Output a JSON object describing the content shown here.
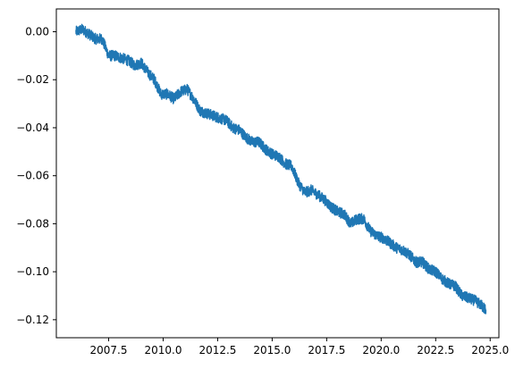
{
  "chart_data": {
    "type": "line",
    "title": "",
    "xlabel": "",
    "ylabel": "",
    "xlim": [
      2005.1,
      2025.4
    ],
    "ylim": [
      -0.1275,
      0.0095
    ],
    "grid": false,
    "legend": "none",
    "x_ticks": [
      2007.5,
      2010.0,
      2012.5,
      2015.0,
      2017.5,
      2020.0,
      2022.5,
      2025.0
    ],
    "x_tick_labels": [
      "2007.5",
      "2010.0",
      "2012.5",
      "2015.0",
      "2017.5",
      "2020.0",
      "2022.5",
      "2025.0"
    ],
    "y_ticks": [
      0.0,
      -0.02,
      -0.04,
      -0.06,
      -0.08,
      -0.1,
      -0.12
    ],
    "y_tick_labels": [
      "0.00",
      "−0.02",
      "−0.04",
      "−0.06",
      "−0.08",
      "−0.10",
      "−0.12"
    ],
    "series": [
      {
        "color": "#1f77b4",
        "x": [
          2006.0,
          2006.3,
          2006.6,
          2006.9,
          2007.2,
          2007.5,
          2007.8,
          2008.1,
          2008.4,
          2008.7,
          2009.0,
          2009.3,
          2009.6,
          2009.9,
          2010.2,
          2010.5,
          2010.8,
          2011.1,
          2011.4,
          2011.7,
          2012.0,
          2012.3,
          2012.6,
          2012.9,
          2013.2,
          2013.5,
          2013.8,
          2014.1,
          2014.4,
          2014.7,
          2015.0,
          2015.3,
          2015.6,
          2015.9,
          2016.2,
          2016.5,
          2016.8,
          2017.1,
          2017.4,
          2017.7,
          2018.0,
          2018.3,
          2018.6,
          2018.9,
          2019.2,
          2019.5,
          2019.8,
          2020.1,
          2020.4,
          2020.7,
          2021.0,
          2021.3,
          2021.6,
          2021.9,
          2022.2,
          2022.5,
          2022.8,
          2023.1,
          2023.4,
          2023.7,
          2024.0,
          2024.3,
          2024.6,
          2024.8
        ],
        "y": [
          0.0,
          0.001,
          -0.001,
          -0.003,
          -0.003,
          -0.01,
          -0.01,
          -0.011,
          -0.012,
          -0.014,
          -0.013,
          -0.017,
          -0.02,
          -0.026,
          -0.026,
          -0.028,
          -0.025,
          -0.024,
          -0.028,
          -0.033,
          -0.034,
          -0.035,
          -0.036,
          -0.037,
          -0.04,
          -0.041,
          -0.044,
          -0.046,
          -0.046,
          -0.049,
          -0.051,
          -0.052,
          -0.055,
          -0.056,
          -0.063,
          -0.067,
          -0.066,
          -0.068,
          -0.07,
          -0.073,
          -0.075,
          -0.076,
          -0.08,
          -0.078,
          -0.078,
          -0.083,
          -0.085,
          -0.086,
          -0.088,
          -0.09,
          -0.091,
          -0.093,
          -0.096,
          -0.096,
          -0.099,
          -0.1,
          -0.103,
          -0.105,
          -0.106,
          -0.11,
          -0.111,
          -0.112,
          -0.114,
          -0.116
        ]
      }
    ]
  }
}
